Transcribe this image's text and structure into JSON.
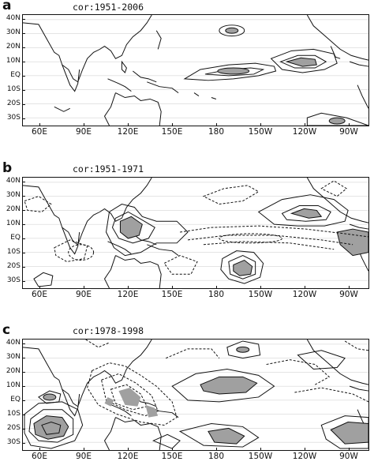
{
  "figure": {
    "lat_labels": [
      "40N",
      "30N",
      "20N",
      "10N",
      "EQ",
      "10S",
      "20S",
      "30S"
    ],
    "lon_labels": [
      "60E",
      "90E",
      "120E",
      "150E",
      "180",
      "150W",
      "120W",
      "90W"
    ],
    "colors": {
      "shade": "#a0a0a0",
      "contour": "#111111",
      "grid": "#c8c8c8"
    }
  },
  "panels": [
    {
      "letter": "a",
      "title": "cor:1951-2006"
    },
    {
      "letter": "b",
      "title": "cor:1951-1971"
    },
    {
      "letter": "c",
      "title": "cor:1978-1998"
    }
  ]
}
